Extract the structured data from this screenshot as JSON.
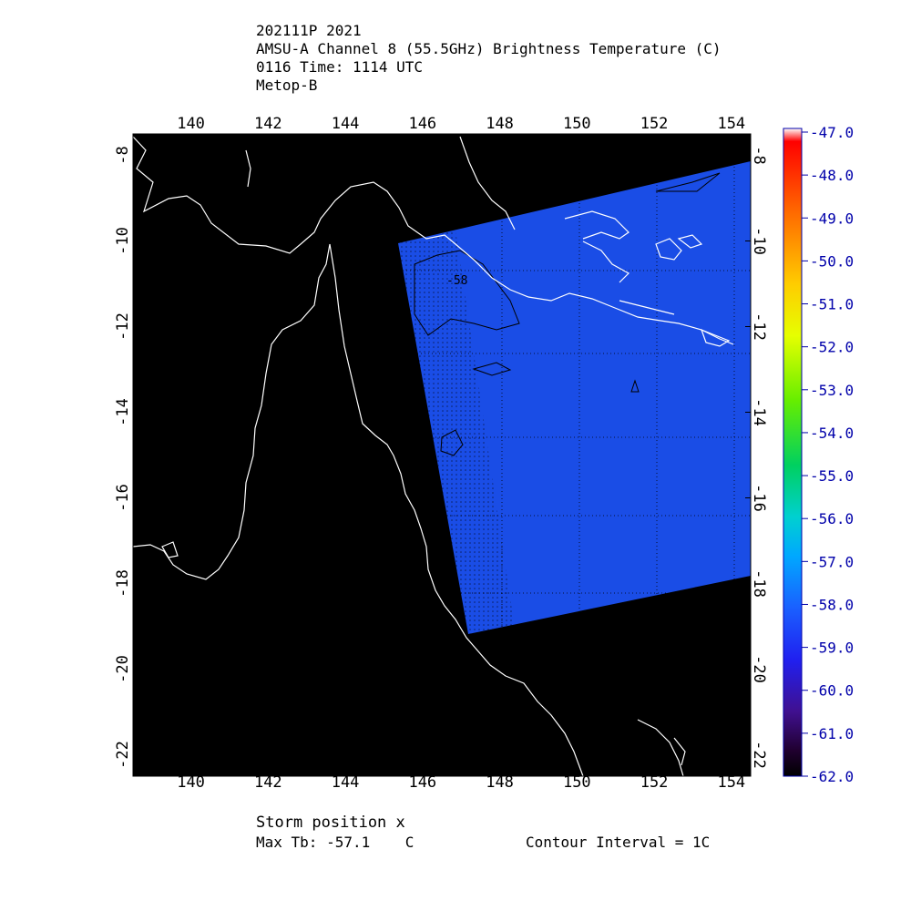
{
  "header": {
    "storm_id": "202111P 2021",
    "product": "AMSU-A Channel 8 (55.5GHz) Brightness Temperature (C)",
    "time": "0116 Time: 1114 UTC",
    "satellite": "Metop-B"
  },
  "footer": {
    "storm_position": "Storm position x",
    "max_tb": "Max Tb: -57.1    C",
    "contour_interval": "Contour Interval = 1C"
  },
  "map": {
    "lon_range": [
      138.5,
      154.5
    ],
    "lat_range": [
      -22.5,
      -7.5
    ],
    "lon_ticks": [
      "140",
      "142",
      "144",
      "146",
      "148",
      "150",
      "152",
      "154"
    ],
    "lat_ticks": [
      "-8",
      "-10",
      "-12",
      "-14",
      "-16",
      "-18",
      "-20",
      "-22"
    ],
    "contour_label": "-58",
    "background_color": "#000000",
    "coastline_color": "#ffffff",
    "swath_color": "#1a4de6"
  },
  "colorbar": {
    "labels": [
      "-47.0",
      "-48.0",
      "-49.0",
      "-50.0",
      "-51.0",
      "-52.0",
      "-53.0",
      "-54.0",
      "-55.0",
      "-56.0",
      "-57.0",
      "-58.0",
      "-59.0",
      "-60.0",
      "-61.0",
      "-62.0"
    ],
    "range": [
      -62.0,
      -47.0
    ]
  }
}
